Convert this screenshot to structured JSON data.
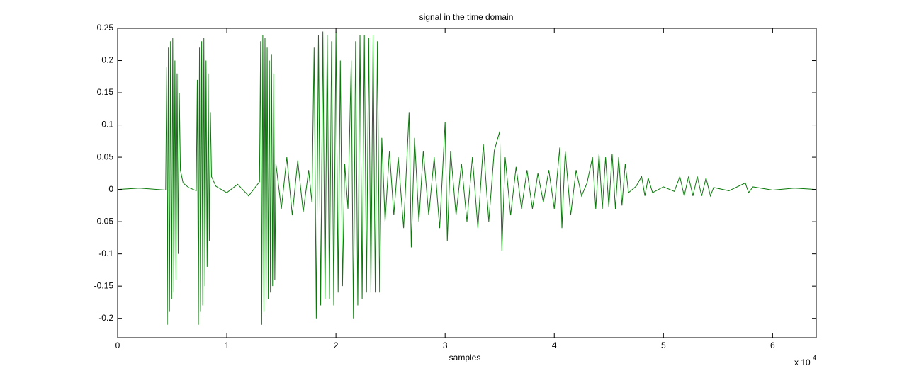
{
  "chart_data": {
    "type": "line",
    "title": "signal in the time domain",
    "x_label": "samples",
    "x_multiplier": "x 10",
    "x_multiplier_exp": "4",
    "xlim": [
      0,
      64000
    ],
    "xticks": [
      0,
      {
        "value": 10000,
        "label": "1"
      },
      {
        "value": 20000,
        "label": "2"
      },
      {
        "value": 30000,
        "label": "3"
      },
      {
        "value": 40000,
        "label": "4"
      },
      {
        "value": 50000,
        "label": "5"
      },
      {
        "value": 60000,
        "label": "6"
      }
    ],
    "ylim": [
      -0.23,
      0.25
    ],
    "yticks": [
      -0.2,
      -0.15,
      -0.1,
      -0.05,
      0,
      0.05,
      0.1,
      0.15,
      0.2,
      0.25
    ],
    "grid": false,
    "series": [
      {
        "color": "#0b7a0b",
        "x": [
          0,
          2000,
          4400,
          4500,
          4550,
          4650,
          4750,
          4850,
          4950,
          5050,
          5150,
          5250,
          5350,
          5450,
          5550,
          5650,
          5750,
          6000,
          6500,
          7200,
          7300,
          7400,
          7500,
          7600,
          7700,
          7800,
          7900,
          8000,
          8100,
          8200,
          8300,
          8400,
          8500,
          8600,
          9000,
          10000,
          11000,
          12000,
          13000,
          13100,
          13200,
          13300,
          13400,
          13500,
          13600,
          13700,
          13800,
          13900,
          14000,
          14100,
          14200,
          14300,
          14400,
          14500,
          15000,
          15500,
          16000,
          16500,
          17000,
          17500,
          17800,
          18000,
          18200,
          18400,
          18600,
          18800,
          19000,
          19200,
          19400,
          19600,
          19800,
          20000,
          20200,
          20400,
          20600,
          20800,
          21100,
          21400,
          21600,
          21800,
          22000,
          22200,
          22400,
          22600,
          22800,
          23000,
          23200,
          23400,
          23600,
          23800,
          24000,
          24200,
          24500,
          24900,
          25300,
          25700,
          26200,
          26700,
          26900,
          27200,
          27600,
          28000,
          28500,
          29000,
          29500,
          30000,
          30200,
          30500,
          31000,
          31500,
          32000,
          32500,
          33000,
          33500,
          34000,
          34500,
          35000,
          35200,
          35500,
          36000,
          36500,
          37000,
          37500,
          38000,
          38500,
          39000,
          39500,
          40000,
          40500,
          40700,
          41000,
          41500,
          42000,
          42500,
          43000,
          43500,
          43800,
          44100,
          44400,
          44700,
          45000,
          45300,
          45600,
          45900,
          46200,
          46500,
          46800,
          47500,
          48000,
          48300,
          48600,
          49000,
          50000,
          51000,
          51500,
          51900,
          52300,
          52700,
          53100,
          53500,
          53900,
          54300,
          54600,
          56000,
          57500,
          57800,
          58200,
          60000,
          62000,
          64000
        ],
        "values": [
          0,
          0.002,
          -0.001,
          0.19,
          -0.21,
          0.22,
          -0.19,
          0.23,
          -0.17,
          0.235,
          -0.16,
          0.2,
          -0.14,
          0.18,
          -0.1,
          0.15,
          0.03,
          0.01,
          0.003,
          -0.002,
          0.17,
          -0.21,
          0.22,
          -0.19,
          0.23,
          -0.18,
          0.235,
          -0.15,
          0.2,
          -0.12,
          0.18,
          -0.08,
          0.12,
          0.02,
          0.005,
          -0.005,
          0.008,
          -0.01,
          0.012,
          0.23,
          -0.21,
          0.24,
          -0.19,
          0.235,
          -0.18,
          0.22,
          -0.17,
          0.2,
          -0.16,
          0.21,
          -0.15,
          0.18,
          -0.14,
          0.04,
          -0.03,
          0.05,
          -0.04,
          0.045,
          -0.035,
          0.03,
          -0.02,
          0.22,
          -0.2,
          0.24,
          -0.18,
          0.245,
          -0.17,
          0.24,
          -0.17,
          0.23,
          -0.18,
          0.245,
          -0.16,
          0.2,
          -0.15,
          0.04,
          -0.03,
          0.2,
          -0.2,
          0.23,
          -0.18,
          0.24,
          -0.17,
          0.24,
          -0.16,
          0.235,
          -0.16,
          0.24,
          -0.16,
          0.23,
          -0.16,
          0.08,
          -0.05,
          0.06,
          -0.04,
          0.05,
          -0.06,
          0.12,
          -0.09,
          0.08,
          -0.05,
          0.06,
          -0.04,
          0.05,
          -0.06,
          0.105,
          -0.08,
          0.06,
          -0.04,
          0.04,
          -0.05,
          0.05,
          -0.06,
          0.07,
          -0.05,
          0.06,
          0.09,
          -0.095,
          0.05,
          -0.04,
          0.035,
          -0.03,
          0.03,
          -0.03,
          0.025,
          -0.02,
          0.03,
          -0.03,
          0.065,
          -0.06,
          0.06,
          -0.04,
          0.03,
          -0.01,
          0.01,
          0.05,
          -0.03,
          0.055,
          -0.03,
          0.05,
          -0.028,
          0.055,
          -0.03,
          0.05,
          -0.025,
          0.04,
          -0.005,
          0.005,
          0.02,
          -0.01,
          0.018,
          -0.005,
          0.004,
          -0.003,
          0.02,
          -0.01,
          0.02,
          -0.01,
          0.02,
          -0.01,
          0.018,
          -0.01,
          0.003,
          -0.002,
          0.01,
          -0.005,
          0.004,
          -0.001,
          0.002,
          0
        ]
      }
    ]
  }
}
